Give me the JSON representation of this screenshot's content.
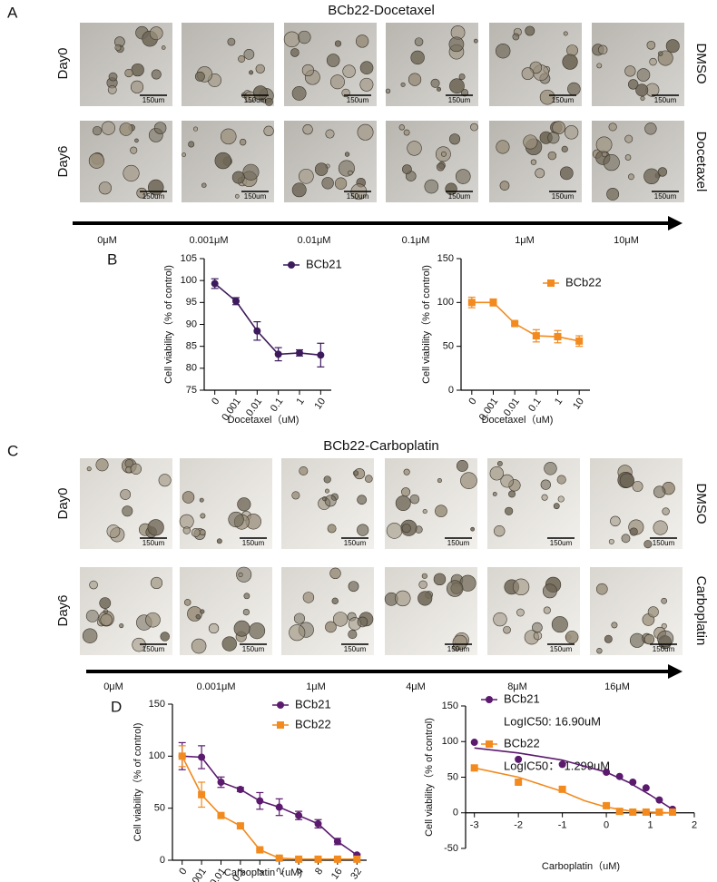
{
  "panel_a": {
    "label": "A",
    "title": "BCb22-Docetaxel",
    "rows": [
      {
        "label": "Day0",
        "condition": "DMSO"
      },
      {
        "label": "Day6",
        "condition": "Docetaxel"
      }
    ],
    "scale_bar": "150um",
    "doses": [
      "0μM",
      "0.001μM",
      "0.01μM",
      "0.1μM",
      "1μM",
      "10μM"
    ]
  },
  "panel_b": {
    "label": "B"
  },
  "panel_c": {
    "label": "C",
    "title": "BCb22-Carboplatin",
    "rows": [
      {
        "label": "Day0",
        "condition": "DMSO"
      },
      {
        "label": "Day6",
        "condition": "Carboplatin"
      }
    ],
    "scale_bar": "150um",
    "doses": [
      "0μM",
      "0.001μM",
      "1μM",
      "4μM",
      "8μM",
      "16μM"
    ]
  },
  "panel_d": {
    "label": "D"
  },
  "chart_data": [
    {
      "type": "line",
      "ylabel": "Cell viability（% of control)",
      "xlabel": "Docetaxel（uM)",
      "categories": [
        "0",
        "0.001",
        "0.01",
        "0.1",
        "1",
        "10"
      ],
      "ylim": [
        75,
        105
      ],
      "yticks": [
        75,
        80,
        85,
        90,
        95,
        100,
        105
      ],
      "series": [
        {
          "name": "BCb21",
          "color": "#3d1a5b",
          "marker": "circle",
          "values": [
            99.3,
            95.3,
            88.5,
            83.2,
            83.5,
            83
          ],
          "errors": [
            1.1,
            0.8,
            2.1,
            1.5,
            0.7,
            2.7
          ]
        }
      ]
    },
    {
      "type": "line",
      "ylabel": "Cell viability（% of control)",
      "xlabel": "Docetaxel（uM)",
      "categories": [
        "0",
        "0.001",
        "0.01",
        "0.1",
        "1",
        "10"
      ],
      "ylim": [
        0,
        150
      ],
      "yticks": [
        0,
        50,
        100,
        150
      ],
      "series": [
        {
          "name": "BCb22",
          "color": "#f28a1e",
          "marker": "square",
          "values": [
            100,
            100,
            76,
            62,
            61,
            56
          ],
          "errors": [
            6,
            4,
            2,
            7,
            7,
            6
          ]
        }
      ]
    },
    {
      "type": "line",
      "ylabel": "Cell viability（% of control)",
      "xlabel": "Carboplatin（uM)",
      "categories": [
        "0",
        "0.001",
        "0.01",
        "0.1",
        "1",
        "2",
        "4",
        "8",
        "16",
        "32"
      ],
      "ylim": [
        0,
        150
      ],
      "yticks": [
        0,
        50,
        100,
        150
      ],
      "series": [
        {
          "name": "BCb21",
          "color": "#5b1a6e",
          "marker": "circle",
          "values": [
            100,
            99,
            75,
            68,
            57,
            51,
            43,
            35,
            18,
            5
          ],
          "errors": [
            13,
            11,
            5,
            2,
            8,
            8,
            4,
            4,
            3,
            1
          ]
        },
        {
          "name": "BCb22",
          "color": "#f28a1e",
          "marker": "square",
          "values": [
            100,
            63,
            43,
            33,
            10,
            2,
            1,
            1,
            1,
            1
          ],
          "errors": [
            10,
            12,
            2,
            2,
            1,
            1,
            1,
            0,
            0,
            0
          ]
        }
      ]
    },
    {
      "type": "scatter",
      "ylabel": "Cell viability（% of control)",
      "xlabel": "Carboplatin（uM)",
      "xlim": [
        -3.2,
        2
      ],
      "xticks": [
        -3,
        -2,
        -1,
        0,
        1,
        2
      ],
      "ylim": [
        -50,
        150
      ],
      "yticks": [
        -50,
        0,
        50,
        100,
        150
      ],
      "series": [
        {
          "name": "BCb21",
          "annotation": "LogIC50: 16.90uM",
          "color": "#5b1a6e",
          "marker": "circle",
          "x": [
            -3,
            -2,
            -1,
            0,
            0.301,
            0.602,
            0.903,
            1.204,
            1.505
          ],
          "values": [
            99,
            75,
            68,
            57,
            51,
            43,
            35,
            18,
            5
          ],
          "fit": {
            "x": [
              -3,
              -2,
              -1,
              0,
              0.5,
              1,
              1.5
            ],
            "values": [
              91,
              84,
              74,
              57,
              43,
              25,
              5
            ]
          }
        },
        {
          "name": "BCb22",
          "annotation": "LogIC50：-1.299uM",
          "color": "#f28a1e",
          "marker": "square",
          "x": [
            -3,
            -2,
            -1,
            0,
            0.301,
            0.602,
            0.903,
            1.204,
            1.505
          ],
          "values": [
            63,
            43,
            33,
            10,
            2,
            1,
            1,
            1,
            1
          ],
          "fit": {
            "x": [
              -3,
              -2,
              -1,
              -0.5,
              0,
              0.5,
              1,
              1.5
            ],
            "values": [
              63,
              50,
              30,
              17,
              8,
              3,
              1,
              0
            ]
          }
        }
      ]
    }
  ]
}
